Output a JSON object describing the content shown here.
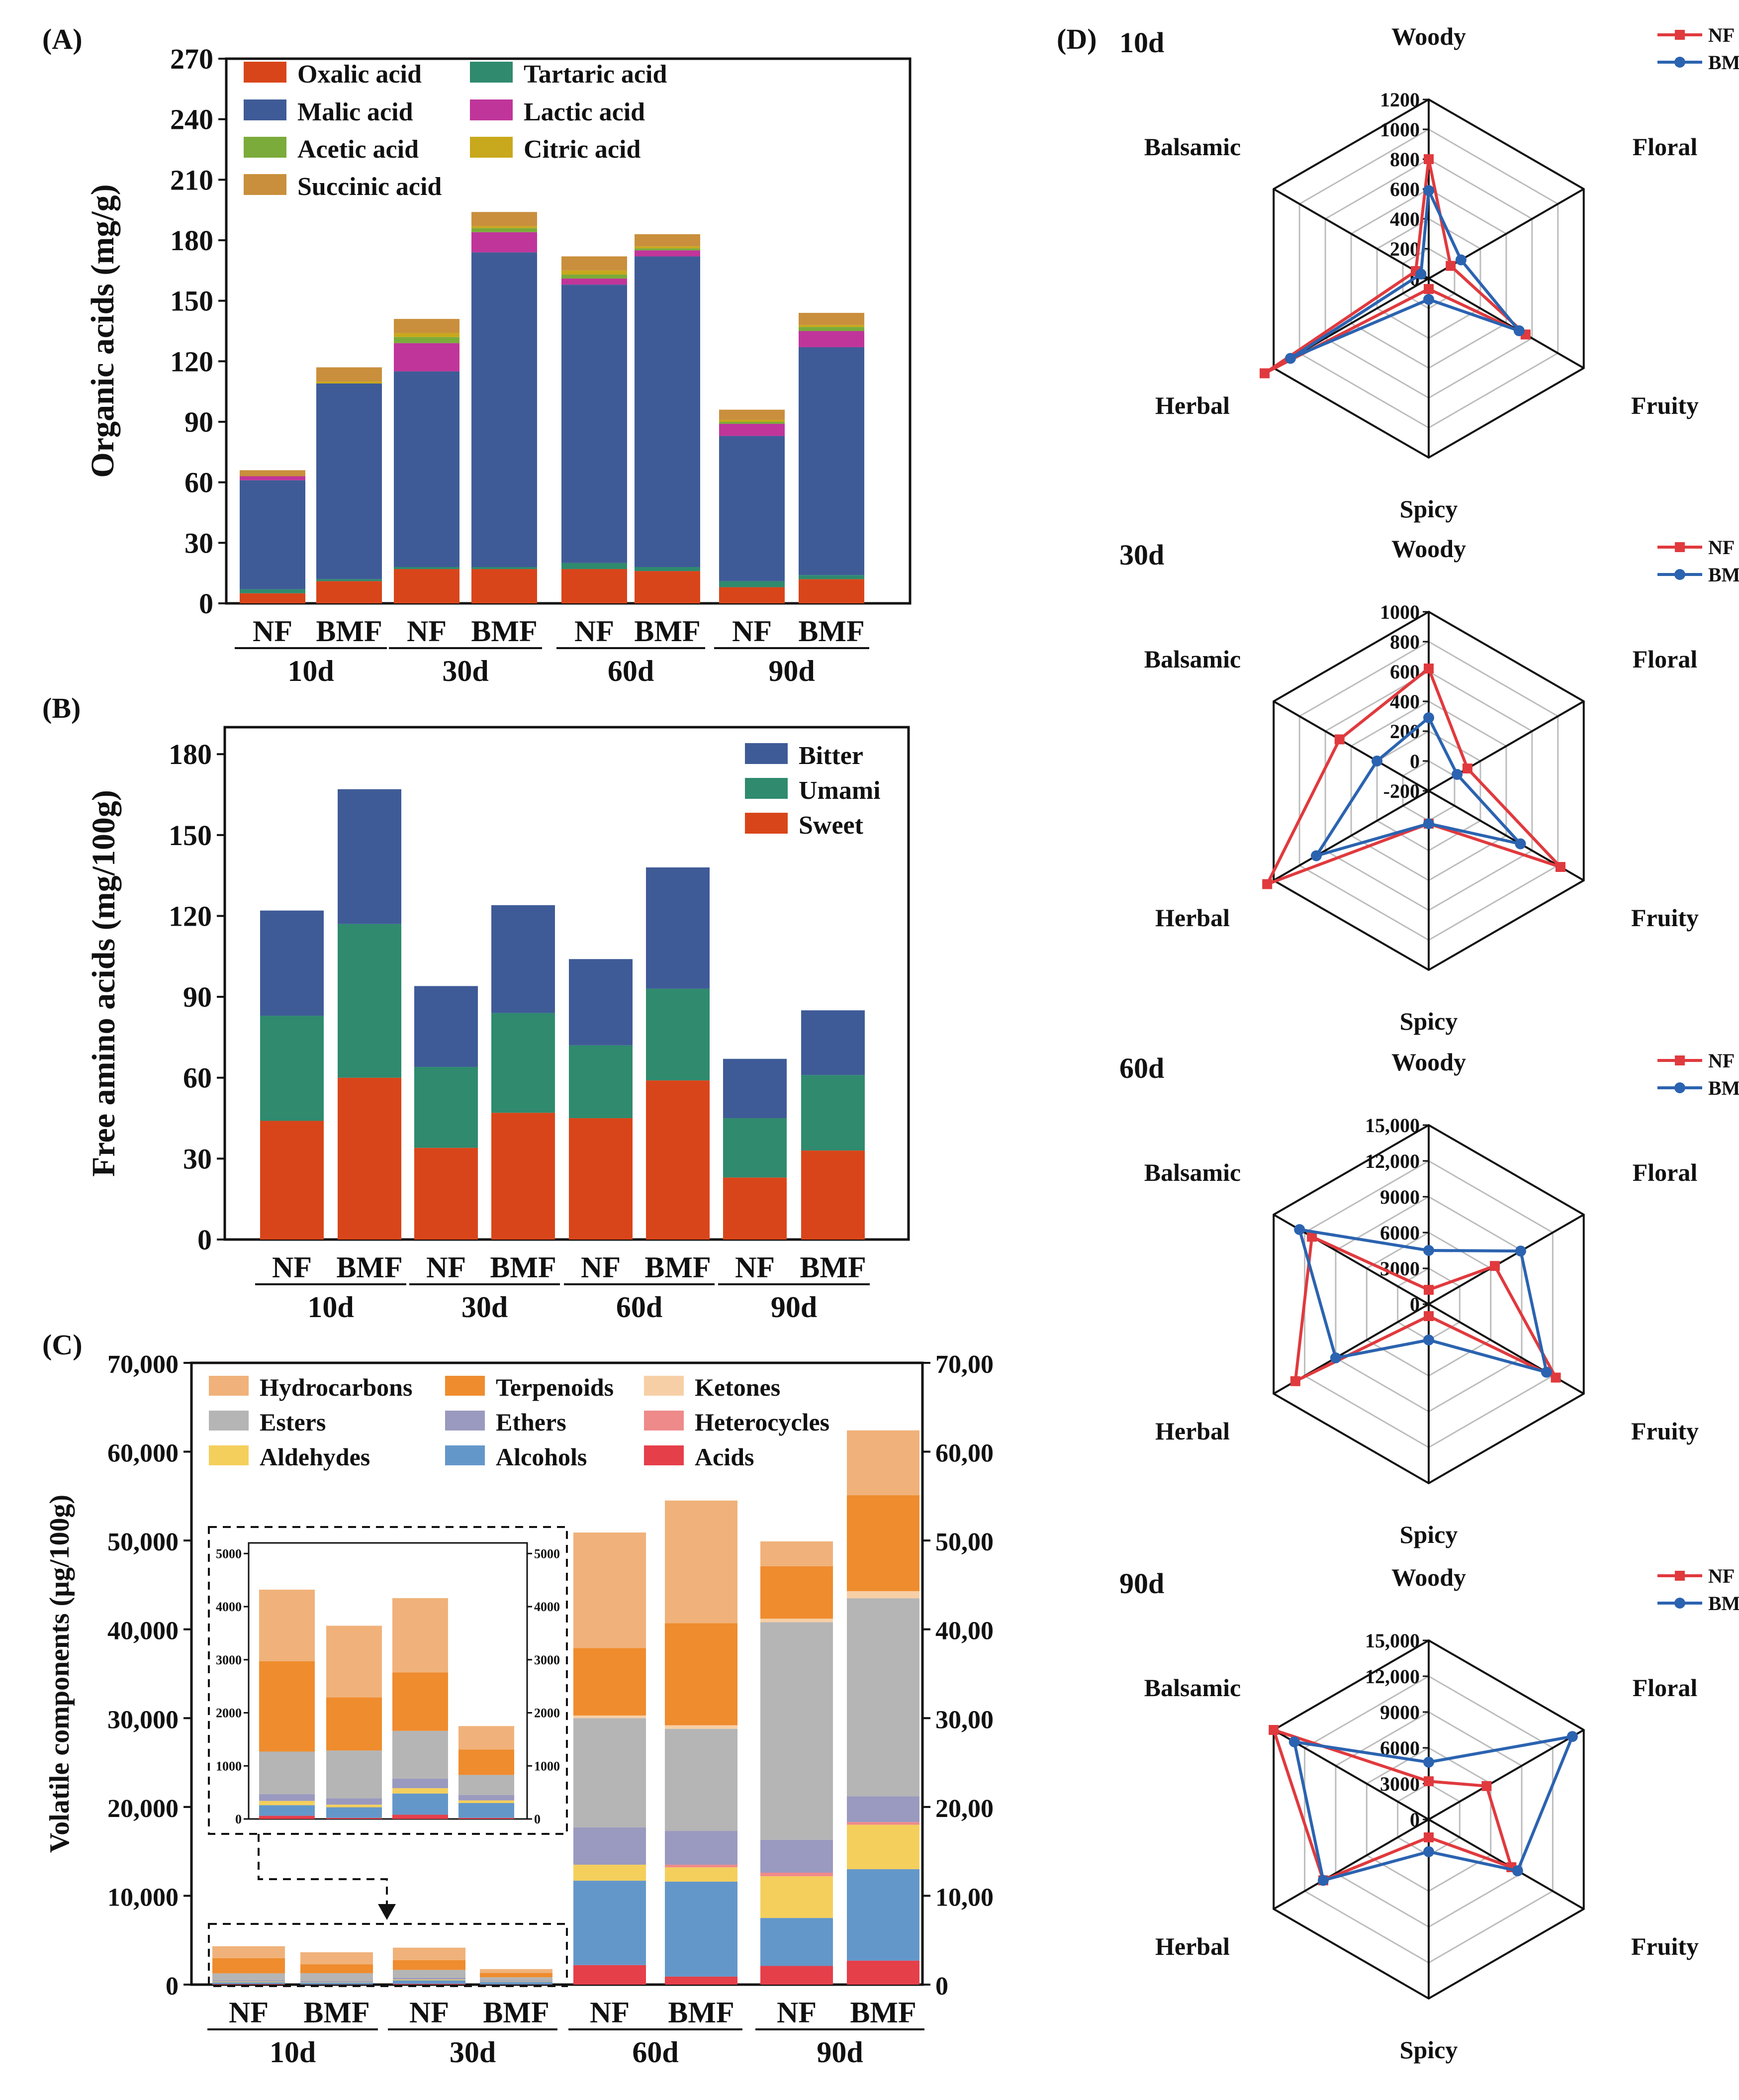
{
  "panels": {
    "A": "(A)",
    "B": "(B)",
    "C": "(C)",
    "D": "(D)"
  },
  "colors": {
    "oxalic": "#d9451a",
    "tartaric": "#2f8a6e",
    "malic": "#3f5b97",
    "lactic": "#c0359a",
    "acetic": "#7bab3a",
    "citric": "#c8a81c",
    "succinic": "#c98f3c",
    "bitter": "#3f5b97",
    "umami": "#2f8a6e",
    "sweet": "#d9451a",
    "hydrocarbons": "#f0b27a",
    "terpenoids": "#ef8c2e",
    "ketones": "#f7cfa6",
    "esters": "#b5b5b5",
    "ethers": "#9a99bf",
    "heterocycles": "#ee8a8a",
    "aldehydes": "#f4cf5c",
    "alcohols": "#6497c9",
    "acids": "#e53f4a",
    "NF": "#e03a3e",
    "BMF": "#2b63b0"
  },
  "chart_data": [
    {
      "id": "A",
      "type": "bar",
      "stacked": true,
      "ylabel": "Organic acids (mg/g)",
      "ylim": [
        0,
        270
      ],
      "yticks": [
        0,
        30,
        60,
        90,
        120,
        150,
        180,
        210,
        240,
        270
      ],
      "categories": [
        "NF",
        "BMF",
        "NF",
        "BMF",
        "NF",
        "BMF",
        "NF",
        "BMF"
      ],
      "groups": [
        "10d",
        "30d",
        "60d",
        "90d"
      ],
      "series": [
        {
          "name": "Oxalic acid",
          "color_key": "oxalic",
          "values": [
            5,
            11,
            17,
            17,
            17,
            16,
            8,
            12
          ]
        },
        {
          "name": "Tartaric acid",
          "color_key": "tartaric",
          "values": [
            2,
            1,
            1,
            1,
            3,
            2,
            3,
            2
          ]
        },
        {
          "name": "Malic acid",
          "color_key": "malic",
          "values": [
            54,
            97,
            97,
            156,
            138,
            154,
            72,
            113
          ]
        },
        {
          "name": "Lactic acid",
          "color_key": "lactic",
          "values": [
            2,
            0,
            14,
            10,
            3,
            3,
            6,
            8
          ]
        },
        {
          "name": "Acetic acid",
          "color_key": "acetic",
          "values": [
            0,
            0,
            3,
            2,
            2,
            1,
            1,
            2
          ]
        },
        {
          "name": "Citric acid",
          "color_key": "citric",
          "values": [
            0,
            1,
            2,
            1,
            2,
            1,
            1,
            1
          ]
        },
        {
          "name": "Succinic acid",
          "color_key": "succinic",
          "values": [
            3,
            7,
            7,
            7,
            7,
            6,
            5,
            6
          ]
        }
      ]
    },
    {
      "id": "B",
      "type": "bar",
      "stacked": true,
      "ylabel": "Free amino acids (mg/100g)",
      "ylim": [
        0,
        190
      ],
      "yticks": [
        0,
        30,
        60,
        90,
        120,
        150,
        180
      ],
      "categories": [
        "NF",
        "BMF",
        "NF",
        "BMF",
        "NF",
        "BMF",
        "NF",
        "BMF"
      ],
      "groups": [
        "10d",
        "30d",
        "60d",
        "90d"
      ],
      "series": [
        {
          "name": "Sweet",
          "color_key": "sweet",
          "values": [
            44,
            60,
            34,
            47,
            45,
            59,
            23,
            33
          ]
        },
        {
          "name": "Umami",
          "color_key": "umami",
          "values": [
            39,
            57,
            30,
            37,
            27,
            34,
            22,
            28
          ]
        },
        {
          "name": "Bitter",
          "color_key": "bitter",
          "values": [
            39,
            50,
            30,
            40,
            32,
            45,
            22,
            24
          ]
        }
      ],
      "legend_order": [
        "Bitter",
        "Umami",
        "Sweet"
      ]
    },
    {
      "id": "C",
      "type": "bar",
      "stacked": true,
      "ylabel": "Volatile components (μg/100g)",
      "ylim": [
        0,
        70000
      ],
      "yticks": [
        0,
        10000,
        20000,
        30000,
        40000,
        50000,
        60000,
        70000
      ],
      "ytick_labels": [
        "0",
        "10,000",
        "20,000",
        "30,000",
        "40,000",
        "50,000",
        "60,000",
        "70,000"
      ],
      "categories": [
        "NF",
        "BMF",
        "NF",
        "BMF",
        "NF",
        "BMF",
        "NF",
        "BMF"
      ],
      "groups": [
        "10d",
        "30d",
        "60d",
        "90d"
      ],
      "legend_order": [
        "Hydrocarbons",
        "Terpenoids",
        "Ketones",
        "Esters",
        "Ethers",
        "Heterocycles",
        "Aldehydes",
        "Alcohols",
        "Acids"
      ],
      "series": [
        {
          "name": "Acids",
          "color_key": "acids",
          "values": [
            60,
            20,
            80,
            20,
            2200,
            900,
            2100,
            2700
          ]
        },
        {
          "name": "Alcohols",
          "color_key": "alcohols",
          "values": [
            200,
            200,
            400,
            280,
            9500,
            10700,
            5400,
            10300
          ]
        },
        {
          "name": "Aldehydes",
          "color_key": "aldehydes",
          "values": [
            80,
            50,
            100,
            50,
            1800,
            1600,
            4700,
            5000
          ]
        },
        {
          "name": "Heterocycles",
          "color_key": "heterocycles",
          "values": [
            0,
            0,
            0,
            0,
            0,
            300,
            400,
            300
          ]
        },
        {
          "name": "Ethers",
          "color_key": "ethers",
          "values": [
            130,
            120,
            180,
            100,
            4200,
            3800,
            3700,
            2900
          ]
        },
        {
          "name": "Esters",
          "color_key": "esters",
          "values": [
            800,
            900,
            900,
            380,
            12300,
            11500,
            24500,
            22300
          ]
        },
        {
          "name": "Ketones",
          "color_key": "ketones",
          "values": [
            0,
            0,
            0,
            0,
            300,
            400,
            400,
            800
          ]
        },
        {
          "name": "Terpenoids",
          "color_key": "terpenoids",
          "values": [
            1700,
            1000,
            1100,
            480,
            7600,
            11500,
            5900,
            10800
          ]
        },
        {
          "name": "Hydrocarbons",
          "color_key": "hydrocarbons",
          "values": [
            1350,
            1350,
            1400,
            440,
            13000,
            13800,
            2800,
            7300
          ]
        }
      ],
      "inset": {
        "ylim": [
          0,
          5200
        ],
        "yticks": [
          0,
          1000,
          2000,
          3000,
          4000,
          5000
        ],
        "ytick_labels": [
          "0",
          "1000",
          "2000",
          "3000",
          "4000",
          "5000"
        ],
        "bars": 4
      }
    },
    {
      "id": "D",
      "type": "radar",
      "axes": [
        "Woody",
        "Floral",
        "Fruity",
        "Spicy",
        "Herbal",
        "Balsamic"
      ],
      "legend": [
        "NF",
        "BMF"
      ],
      "charts": [
        {
          "title": "10d",
          "rmin": 0,
          "rmax": 1200,
          "rings": 6,
          "ticks": [
            "0",
            "200",
            "400",
            "600",
            "800",
            "1000",
            "1200"
          ],
          "NF": [
            800,
            170,
            750,
            70,
            1270,
            100
          ],
          "BMF": [
            590,
            250,
            700,
            140,
            1070,
            60
          ]
        },
        {
          "title": "30d",
          "rmin": -200,
          "rmax": 1000,
          "rings": 6,
          "ticks": [
            "-200",
            "0",
            "200",
            "400",
            "600",
            "800",
            "1000"
          ],
          "NF": [
            620,
            100,
            820,
            20,
            1050,
            490
          ],
          "BMF": [
            290,
            20,
            510,
            20,
            670,
            200
          ]
        },
        {
          "title": "60d",
          "rmin": 0,
          "rmax": 15000,
          "rings": 5,
          "ticks": [
            "0",
            "3000",
            "6000",
            "9000",
            "12,000",
            "15,000"
          ],
          "NF": [
            1200,
            6400,
            12300,
            1000,
            12900,
            11300
          ],
          "BMF": [
            4500,
            8900,
            11400,
            3000,
            9000,
            12500
          ]
        },
        {
          "title": "90d",
          "rmin": 0,
          "rmax": 15000,
          "rings": 5,
          "ticks": [
            "0",
            "3000",
            "6000",
            "9000",
            "12,000",
            "15,000"
          ],
          "NF": [
            3200,
            5600,
            8000,
            1500,
            10200,
            15000
          ],
          "BMF": [
            4800,
            13900,
            8600,
            2700,
            10200,
            13000
          ]
        }
      ]
    }
  ]
}
